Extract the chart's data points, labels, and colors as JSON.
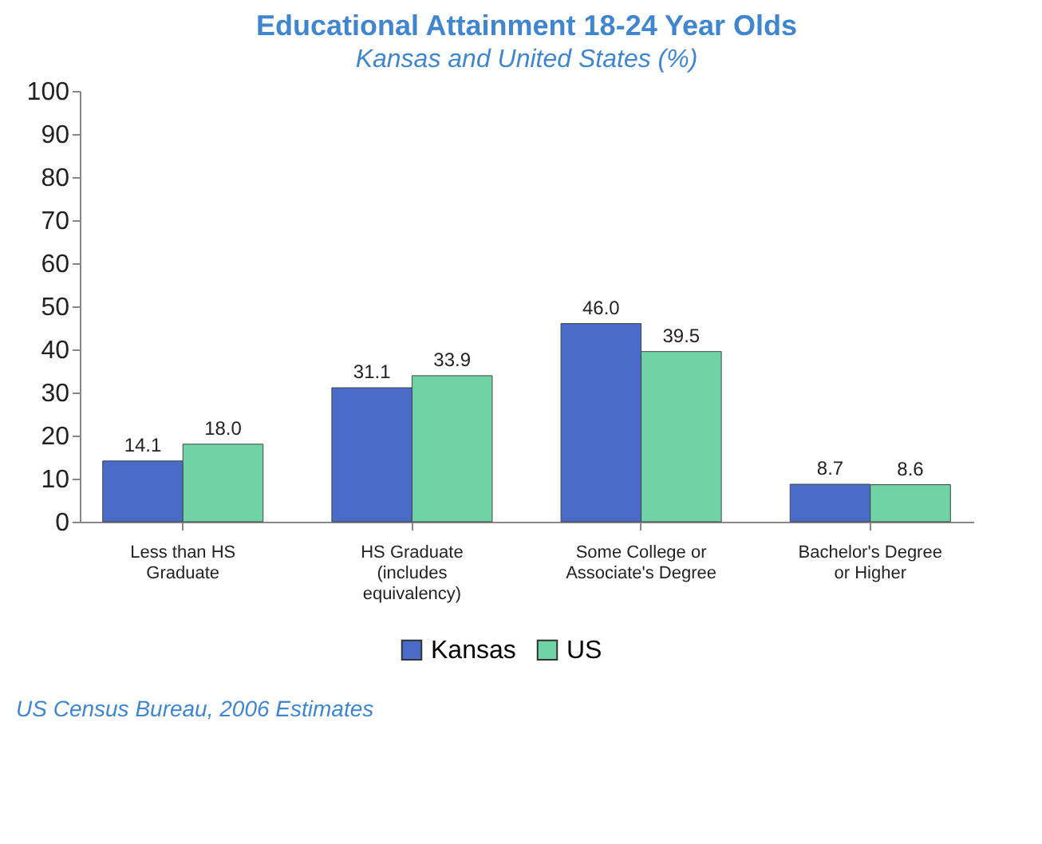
{
  "chart_data": {
    "type": "bar",
    "title": "Educational Attainment 18-24 Year Olds",
    "subtitle": "Kansas and United States (%)",
    "categories": [
      "Less than HS\nGraduate",
      "HS Graduate\n(includes\nequivalency)",
      "Some College or\nAssociate's Degree",
      "Bachelor's Degree\nor Higher"
    ],
    "series": [
      {
        "name": "Kansas",
        "color": "#4a6cc8",
        "values": [
          14.1,
          31.1,
          46.0,
          8.7
        ],
        "value_labels": [
          "14.1",
          "31.1",
          "46.0",
          "8.7"
        ]
      },
      {
        "name": "US",
        "color": "#6fd3a6",
        "values": [
          18.0,
          33.9,
          39.5,
          8.6
        ],
        "value_labels": [
          "18.0",
          "33.9",
          "39.5",
          "8.6"
        ]
      }
    ],
    "ylim": [
      0,
      100
    ],
    "yticks": [
      0,
      10,
      20,
      30,
      40,
      50,
      60,
      70,
      80,
      90,
      100
    ],
    "grid": false,
    "legend": "bottom",
    "annotations": [
      "US Census Bureau, 2006 Estimates"
    ]
  }
}
